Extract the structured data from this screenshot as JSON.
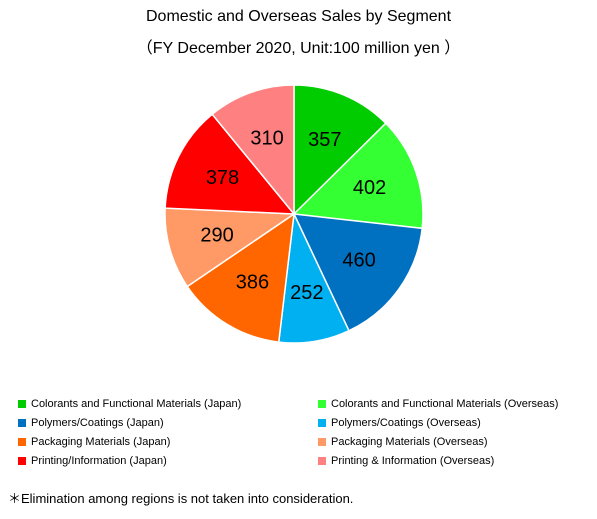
{
  "title": "Domestic and Overseas Sales by Segment",
  "subtitle": "（FY December 2020, Unit:100 million yen ）",
  "footnote": "＊Elimination among regions is not taken into consideration.",
  "chart_data": {
    "type": "pie",
    "title": "Domestic and Overseas Sales by Segment",
    "subtitle": "（FY December 2020, Unit:100 million yen ）",
    "legend_position": "bottom",
    "slices": [
      {
        "label": "Colorants and Functional Materials (Japan)",
        "value": 357,
        "color": "#00cc00"
      },
      {
        "label": "Colorants and Functional Materials (Overseas)",
        "value": 402,
        "color": "#33ff33"
      },
      {
        "label": "Polymers/Coatings (Japan)",
        "value": 460,
        "color": "#0070c0"
      },
      {
        "label": "Polymers/Coatings (Overseas)",
        "value": 252,
        "color": "#00b0f0"
      },
      {
        "label": "Packaging Materials (Japan)",
        "value": 386,
        "color": "#ff6600"
      },
      {
        "label": "Packaging Materials (Overseas)",
        "value": 290,
        "color": "#ff9966"
      },
      {
        "label": "Printing/Information (Japan)",
        "value": 378,
        "color": "#ff0000"
      },
      {
        "label": "Printing & Information (Overseas)",
        "value": 310,
        "color": "#ff8080"
      }
    ]
  }
}
